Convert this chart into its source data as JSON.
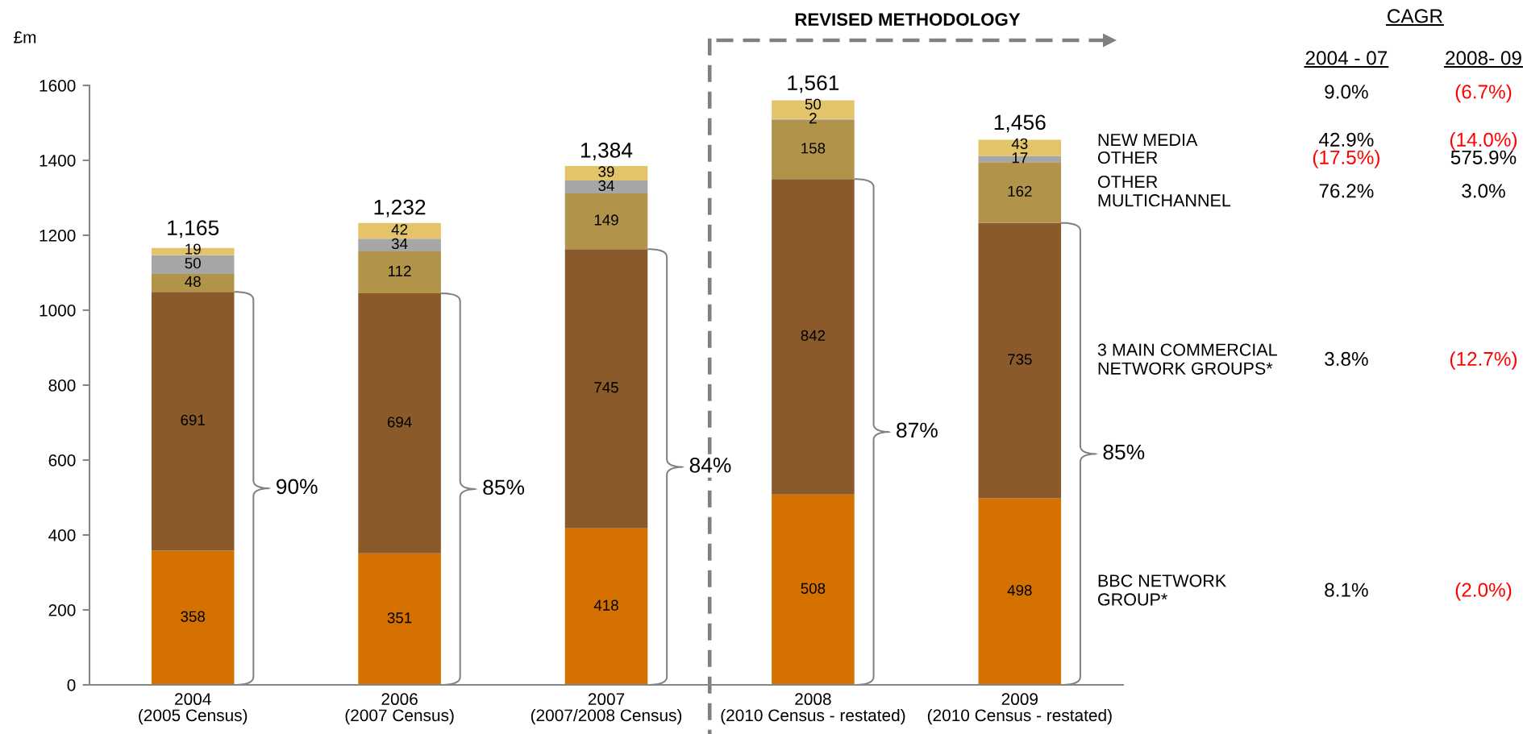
{
  "chart_data": [
    {
      "type": "bar",
      "stacked": true,
      "ylabel": "£m",
      "categories": [
        "2004\n(2005 Census)",
        "2006\n(2007 Census)",
        "2007\n(2007/2008 Census)",
        "2008\n(2010 Census - restated)",
        "2009\n(2010 Census - restated)"
      ],
      "series": [
        {
          "name": "BBC NETWORK\nGROUP*",
          "color": "#d47100",
          "values": [
            358,
            351,
            418,
            508,
            498
          ]
        },
        {
          "name": "3 MAIN COMMERCIAL\nNETWORK GROUPS*",
          "color": "#8b5a2b",
          "values": [
            691,
            694,
            745,
            842,
            735
          ]
        },
        {
          "name": "OTHER\nMULTICHANNEL",
          "color": "#b1944a",
          "values": [
            48,
            112,
            149,
            158,
            162
          ]
        },
        {
          "name": "OTHER",
          "color": "#a6a6a6",
          "values": [
            50,
            34,
            34,
            2,
            17
          ]
        },
        {
          "name": "NEW MEDIA",
          "color": "#e3c46a",
          "values": [
            19,
            42,
            39,
            50,
            43
          ]
        }
      ],
      "ylim": [
        0,
        1600
      ],
      "yticks": [
        0,
        200,
        400,
        600,
        800,
        1000,
        1200,
        1400,
        1600
      ],
      "data_labels": true,
      "totals": [
        "1,165",
        "1,232",
        "1,384",
        "1,561",
        "1,456"
      ],
      "annotations": [
        "REVISED METHODOLOGY",
        "90%",
        "85%",
        "84%",
        "87%",
        "85%"
      ]
    },
    {
      "type": "other",
      "title": "CAGR",
      "categories": [
        "2004 - 07",
        "2008- 09"
      ],
      "series": [
        {
          "values": [
            9.0,
            -6.7
          ],
          "value_labels": [
            "9.0%",
            "(6.7%)"
          ],
          "colors": [
            "#000000",
            "#ff0000"
          ]
        },
        {
          "values": [
            42.9,
            -14.0
          ],
          "value_labels": [
            "42.9%",
            "(14.0%)"
          ],
          "colors": [
            "#000000",
            "#ff0000"
          ]
        },
        {
          "values": [
            -17.5,
            575.9
          ],
          "value_labels": [
            "(17.5%)",
            "575.9%"
          ],
          "colors": [
            "#ff0000",
            "#000000"
          ]
        },
        {
          "values": [
            76.2,
            3.0
          ],
          "value_labels": [
            "76.2%",
            "3.0%"
          ],
          "colors": [
            "#000000",
            "#000000"
          ]
        },
        {
          "values": [
            3.8,
            -12.7
          ],
          "value_labels": [
            "3.8%",
            "(12.7%)"
          ],
          "colors": [
            "#000000",
            "#ff0000"
          ]
        },
        {
          "values": [
            8.1,
            -2.0
          ],
          "value_labels": [
            "8.1%",
            "(2.0%)"
          ],
          "colors": [
            "#000000",
            "#ff0000"
          ]
        }
      ]
    }
  ]
}
